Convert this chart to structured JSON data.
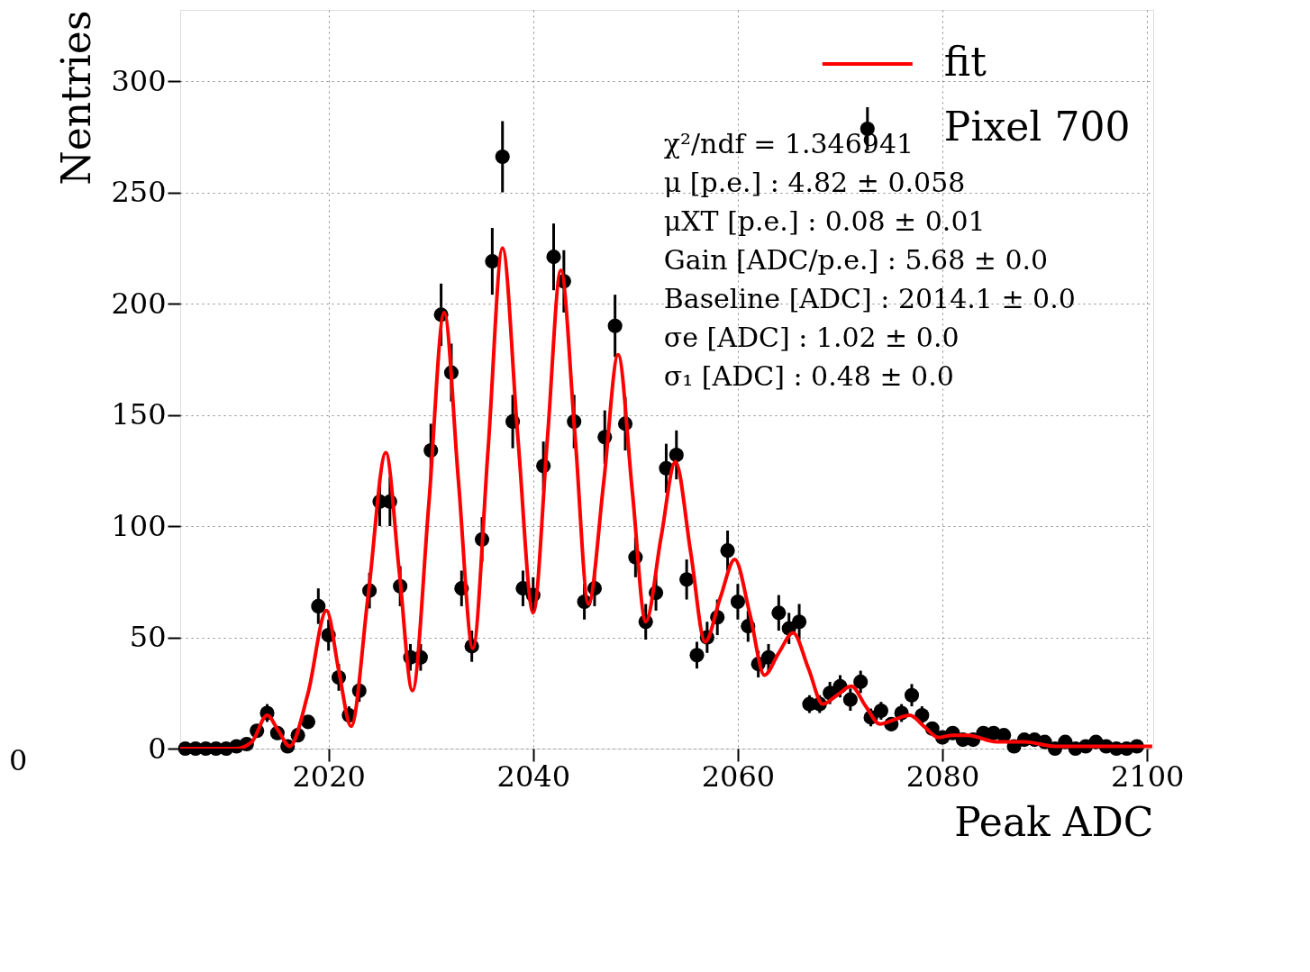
{
  "chart_data": {
    "type": "scatter",
    "xlabel": "Peak ADC",
    "ylabel": "Nentries",
    "xlim": [
      2005.5,
      2100.6
    ],
    "ylim": [
      0,
      332
    ],
    "xticks": [
      2020,
      2040,
      2060,
      2080,
      2100
    ],
    "yticks": [
      0,
      50,
      100,
      150,
      200,
      250,
      300
    ],
    "grid": true,
    "legend": "top right",
    "series": [
      {
        "name": "fit",
        "type": "line",
        "color": "#ff0000",
        "line_style": "solid",
        "x": [
          2005.5,
          2011,
          2012.5,
          2014,
          2015.1,
          2016.2,
          2018,
          2019.8,
          2021,
          2022.2,
          2023.9,
          2025.6,
          2026.9,
          2028.2,
          2029.8,
          2031.3,
          2032.7,
          2034.1,
          2035.6,
          2037.0,
          2038.5,
          2040.0,
          2041.4,
          2042.7,
          2044.1,
          2045.4,
          2046.9,
          2048.3,
          2049.7,
          2051.0,
          2052.5,
          2053.9,
          2055.4,
          2056.8,
          2058.3,
          2059.7,
          2061.2,
          2062.6,
          2064.0,
          2065.4,
          2066.9,
          2068.3,
          2069.7,
          2071.1,
          2072.5,
          2073.9,
          2075.3,
          2076.8,
          2078.2,
          2079.6,
          2081,
          2082.5,
          2085.3,
          2088,
          2091,
          2100.5
        ],
        "values": [
          0,
          0,
          3,
          15,
          8,
          1,
          25,
          62,
          35,
          10,
          70,
          133,
          80,
          26,
          110,
          196,
          120,
          45,
          135,
          225,
          140,
          61,
          140,
          215,
          140,
          65,
          120,
          177,
          115,
          57,
          95,
          129,
          88,
          48,
          68,
          85,
          60,
          33,
          43,
          52,
          36,
          20,
          24,
          28,
          19,
          11,
          13,
          15,
          10,
          5,
          6,
          6,
          3,
          3,
          1,
          1
        ]
      },
      {
        "name": "Pixel 700",
        "color": "#000000",
        "marker": "circle",
        "x": [
          2006,
          2007,
          2008,
          2009,
          2010,
          2011,
          2012,
          2013,
          2014,
          2015,
          2016,
          2017,
          2018,
          2019,
          2020,
          2021,
          2022,
          2023,
          2024,
          2025,
          2026,
          2027,
          2028,
          2029,
          2030,
          2031,
          2032,
          2033,
          2034,
          2035,
          2036,
          2037,
          2038,
          2039,
          2040,
          2041,
          2042,
          2043,
          2044,
          2045,
          2046,
          2047,
          2048,
          2049,
          2050,
          2051,
          2052,
          2053,
          2054,
          2055,
          2056,
          2057,
          2058,
          2059,
          2060,
          2061,
          2062,
          2063,
          2064,
          2065,
          2066,
          2067,
          2068,
          2069,
          2070,
          2071,
          2072,
          2073,
          2074,
          2075,
          2076,
          2077,
          2078,
          2079,
          2080,
          2081,
          2082,
          2083,
          2084,
          2085,
          2086,
          2087,
          2088,
          2089,
          2090,
          2091,
          2092,
          2093,
          2094,
          2095,
          2096,
          2097,
          2098,
          2099
        ],
        "values": [
          0,
          0,
          0,
          0,
          0,
          1,
          2,
          8,
          16,
          7,
          1,
          6,
          12,
          64,
          51,
          32,
          15,
          26,
          71,
          111,
          111,
          73,
          41,
          41,
          134,
          195,
          169,
          72,
          46,
          94,
          219,
          266,
          147,
          72,
          69,
          127,
          221,
          210,
          147,
          66,
          72,
          140,
          190,
          146,
          86,
          57,
          70,
          126,
          132,
          76,
          42,
          50,
          59,
          89,
          66,
          55,
          38,
          41,
          61,
          54,
          57,
          20,
          20,
          25,
          28,
          22,
          30,
          14,
          17,
          11,
          16,
          24,
          15,
          9,
          5,
          7,
          4,
          4,
          7,
          7,
          6,
          1,
          4,
          4,
          3,
          0,
          3,
          0,
          1,
          3,
          1,
          0,
          0,
          1
        ],
        "errors": [
          null,
          null,
          null,
          null,
          null,
          1,
          1,
          3,
          4,
          3,
          1,
          2,
          3,
          8,
          7,
          6,
          4,
          5,
          8,
          11,
          11,
          9,
          6,
          6,
          12,
          14,
          13,
          8,
          7,
          10,
          15,
          16,
          12,
          8,
          8,
          11,
          15,
          14,
          12,
          8,
          8,
          12,
          14,
          12,
          9,
          8,
          8,
          11,
          11,
          9,
          6,
          7,
          8,
          9,
          8,
          7,
          6,
          6,
          8,
          7,
          8,
          4,
          4,
          5,
          5,
          5,
          5,
          4,
          4,
          3,
          4,
          5,
          4,
          3,
          2,
          3,
          2,
          2,
          3,
          3,
          2,
          1,
          2,
          2,
          2,
          null,
          2,
          null,
          1,
          2,
          1,
          null,
          null,
          1
        ]
      }
    ],
    "annotations": [
      "χ²/ndf = 1.346941",
      "μ [p.e.] : 4.82 ± 0.058",
      "μXT [p.e.] : 0.08 ± 0.01",
      "Gain [ADC/p.e.] : 5.68 ± 0.0",
      "Baseline [ADC] : 2014.1 ± 0.0",
      "σe [ADC] : 1.02 ± 0.0",
      "σ₁ [ADC] : 0.48 ± 0.0",
      "0"
    ]
  }
}
